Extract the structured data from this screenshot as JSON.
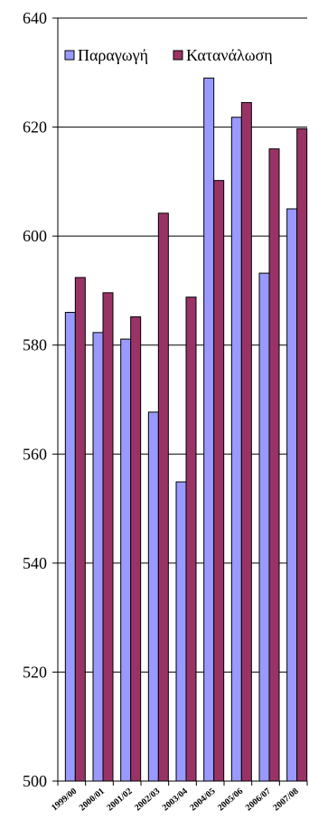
{
  "chart_data": {
    "type": "bar",
    "title": "",
    "xlabel": "",
    "ylabel": "",
    "categories": [
      "1999/00",
      "2000/01",
      "2001/02",
      "2002/03",
      "2003/04",
      "2004/05",
      "2005/06",
      "2006/07",
      "2007/08"
    ],
    "series": [
      {
        "name": "Παραγωγή",
        "color": "#9999FF",
        "values": [
          586,
          582.3,
          581.1,
          567.7,
          554.9,
          629,
          621.8,
          593.2,
          605
        ]
      },
      {
        "name": "Κατανάλωση",
        "color": "#993366",
        "values": [
          592.4,
          589.6,
          585.2,
          604.2,
          588.8,
          610.2,
          624.5,
          616,
          619.7
        ]
      }
    ],
    "ylim": [
      500,
      640
    ],
    "yticks": [
      "500",
      "520",
      "540",
      "560",
      "580",
      "600",
      "620",
      "640"
    ],
    "grid": true,
    "legend_position": "top"
  }
}
